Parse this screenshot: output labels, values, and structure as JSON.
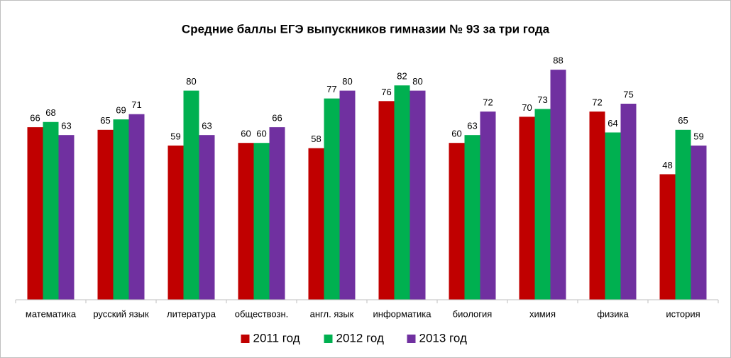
{
  "chart_data": {
    "type": "bar",
    "title": "Средние баллы ЕГЭ выпускников гимназии № 93 за три года",
    "categories": [
      "математика",
      "русский язык",
      "литература",
      "обществозн.",
      "англ. язык",
      "информатика",
      "биология",
      "химия",
      "физика",
      "история"
    ],
    "series": [
      {
        "name": "2011 год",
        "color": "#c00000",
        "values": [
          66,
          65,
          59,
          60,
          58,
          76,
          60,
          70,
          72,
          48
        ]
      },
      {
        "name": "2012 год",
        "color": "#00b050",
        "values": [
          68,
          69,
          80,
          60,
          77,
          82,
          63,
          73,
          64,
          65
        ]
      },
      {
        "name": "2013 год",
        "color": "#7030a0",
        "values": [
          63,
          71,
          63,
          66,
          80,
          80,
          72,
          88,
          75,
          59
        ]
      }
    ],
    "ylim": [
      0,
      100
    ],
    "legend": "bottom"
  }
}
